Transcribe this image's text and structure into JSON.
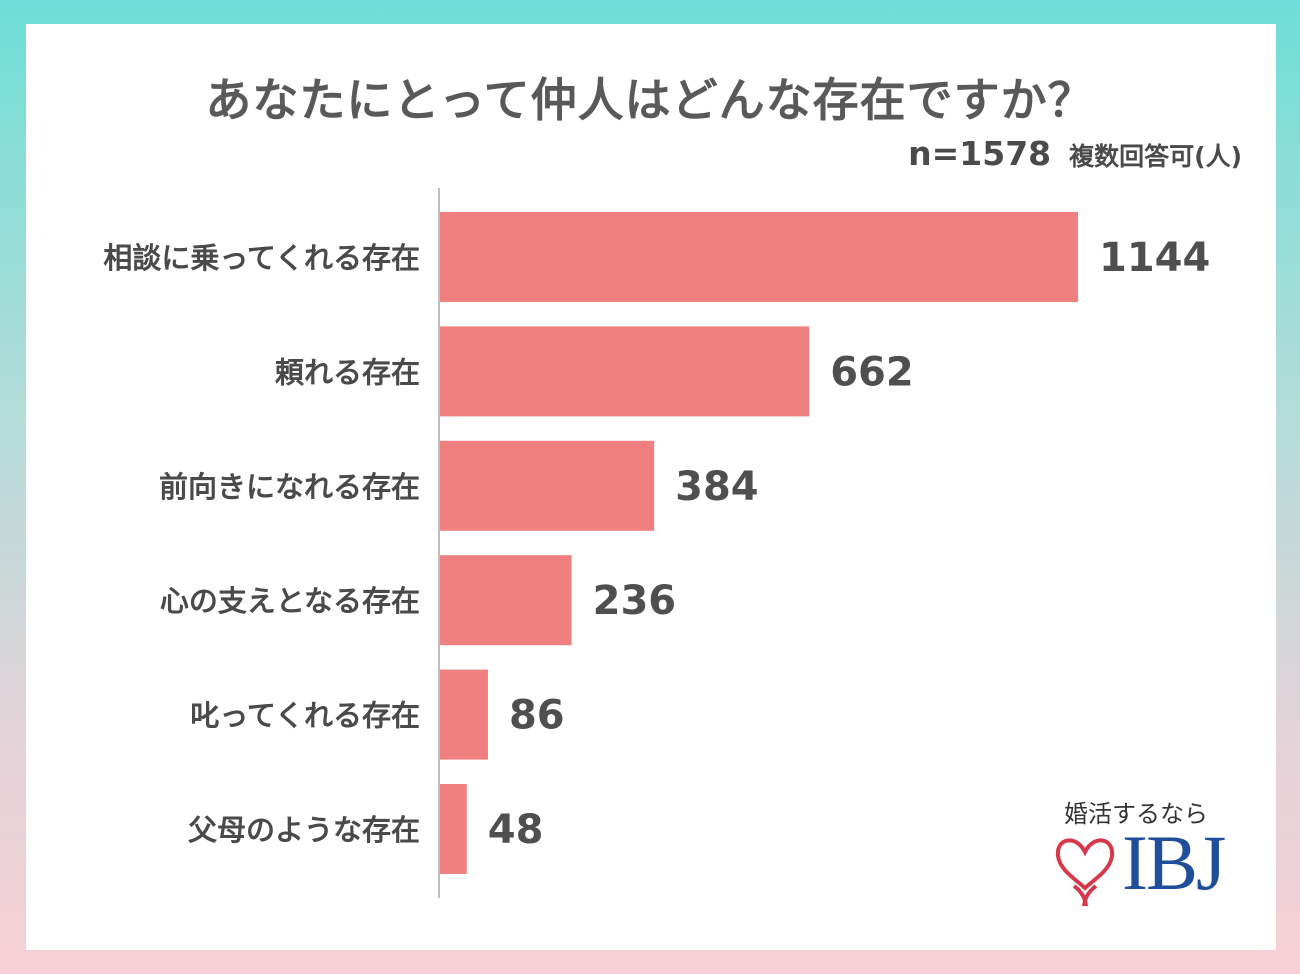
{
  "title": "あなたにとって仲人はどんな存在ですか？",
  "sample": "n=1578",
  "note": "複数回答可(人)",
  "logo": {
    "tagline": "婚活するなら",
    "brand": "IBJ"
  },
  "colors": {
    "bar": "#f08080",
    "axis": "#bfbfbf",
    "heart": "#d63a4a",
    "brand": "#1f4f9a"
  },
  "chart_data": {
    "type": "bar",
    "orientation": "horizontal",
    "categories": [
      "相談に乗ってくれる存在",
      "頼れる存在",
      "前向きになれる存在",
      "心の支えとなる存在",
      "叱ってくれる存在",
      "父母のような存在"
    ],
    "values": [
      1144,
      662,
      384,
      236,
      86,
      48
    ],
    "title": "あなたにとって仲人はどんな存在ですか？",
    "xlabel": "",
    "ylabel": "",
    "xlim": [
      0,
      1144
    ],
    "grid": false
  }
}
